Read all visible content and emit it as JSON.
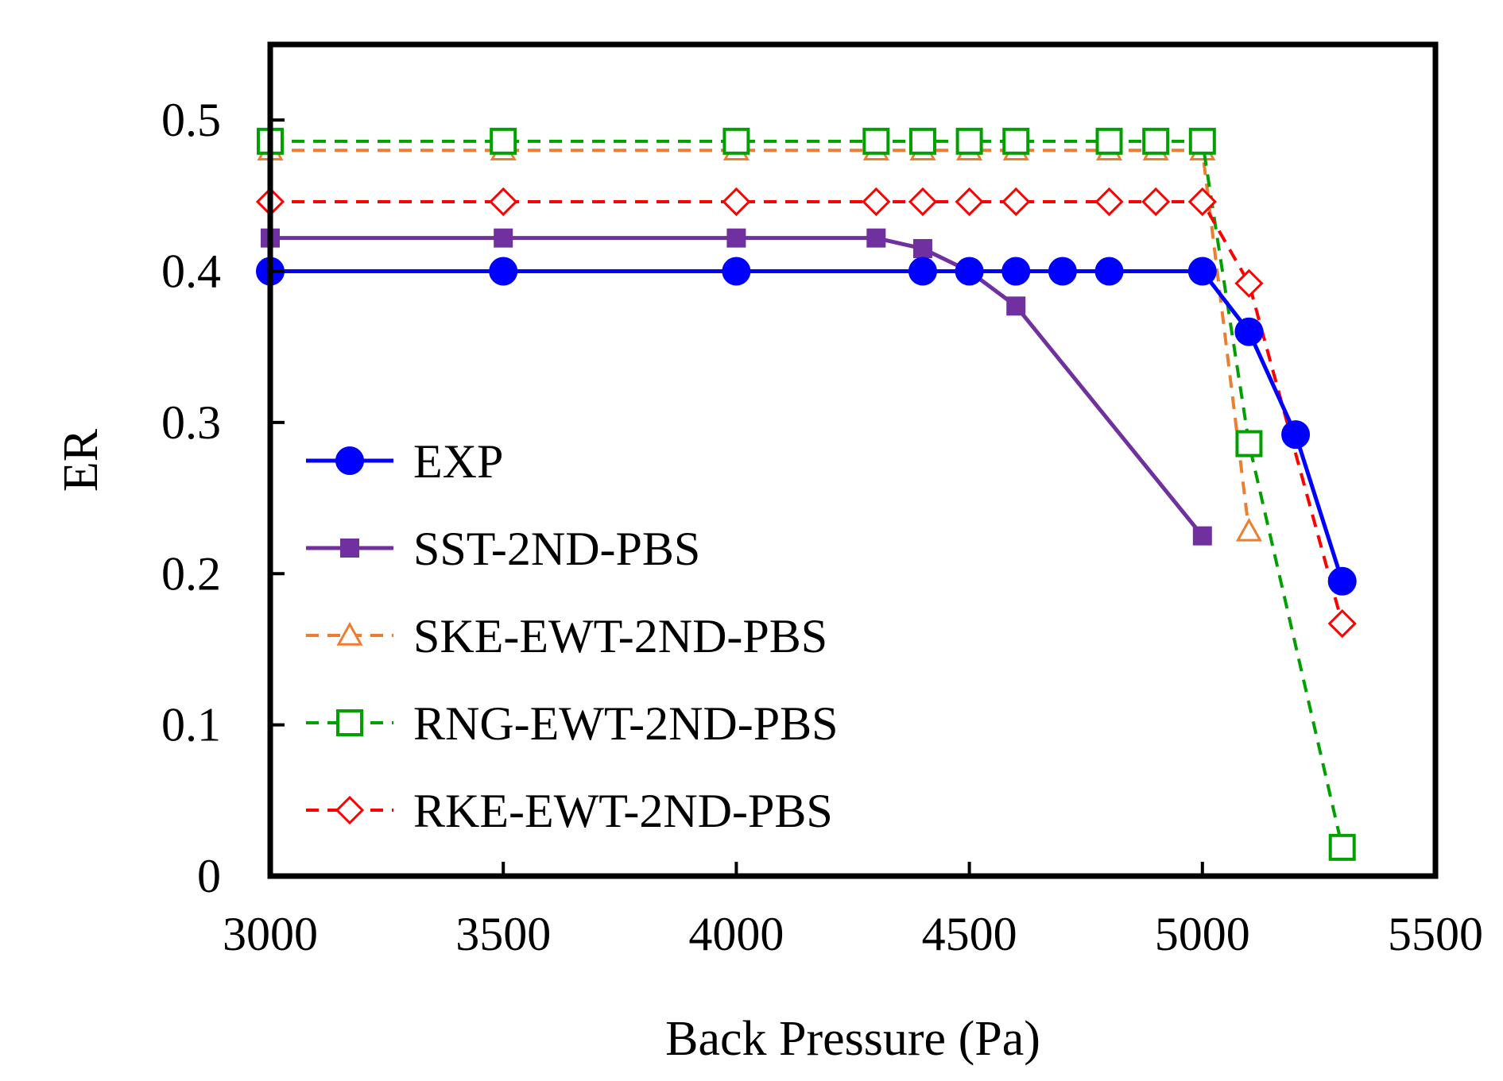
{
  "chart_data": {
    "type": "line",
    "title": "",
    "xlabel": "Back Pressure (Pa)",
    "ylabel": "ER",
    "xlim": [
      3000,
      5500
    ],
    "ylim": [
      0,
      0.55
    ],
    "xticks": [
      3000,
      3500,
      4000,
      4500,
      5000,
      5500
    ],
    "xtick_labels": [
      "3000",
      "3500",
      "4000",
      "4500",
      "5000",
      "5500"
    ],
    "yticks": [
      0,
      0.1,
      0.2,
      0.3,
      0.4,
      0.5
    ],
    "ytick_labels": [
      "0",
      "0.1",
      "0.2",
      "0.3",
      "0.4",
      "0.5"
    ],
    "grid": false,
    "legend_position": "left-center",
    "series": [
      {
        "name": "EXP",
        "color": "#0000ff",
        "line": "solid",
        "marker": "filled-circle",
        "x": [
          3000,
          3500,
          4000,
          4400,
          4500,
          4600,
          4700,
          4800,
          5000,
          5100,
          5200,
          5300
        ],
        "y": [
          0.4,
          0.4,
          0.4,
          0.4,
          0.4,
          0.4,
          0.4,
          0.4,
          0.4,
          0.36,
          0.292,
          0.195
        ]
      },
      {
        "name": "SST-2ND-PBS",
        "color": "#7030a0",
        "line": "solid",
        "marker": "filled-square",
        "x": [
          3000,
          3500,
          4000,
          4300,
          4400,
          4500,
          4600,
          5000
        ],
        "y": [
          0.422,
          0.422,
          0.422,
          0.422,
          0.415,
          0.4,
          0.377,
          0.225
        ]
      },
      {
        "name": "SKE-EWT-2ND-PBS",
        "color": "#ed7d31",
        "line": "dashed",
        "marker": "open-triangle",
        "x": [
          3000,
          3500,
          4000,
          4300,
          4400,
          4500,
          4600,
          4800,
          4900,
          5000,
          5100
        ],
        "y": [
          0.48,
          0.48,
          0.48,
          0.48,
          0.48,
          0.48,
          0.48,
          0.48,
          0.48,
          0.48,
          0.228
        ]
      },
      {
        "name": "RNG-EWT-2ND-PBS",
        "color": "#00a000",
        "line": "dashed",
        "marker": "open-square",
        "x": [
          3000,
          3500,
          4000,
          4300,
          4400,
          4500,
          4600,
          4800,
          4900,
          5000,
          5100,
          5300
        ],
        "y": [
          0.486,
          0.486,
          0.486,
          0.486,
          0.486,
          0.486,
          0.486,
          0.486,
          0.486,
          0.486,
          0.286,
          0.019
        ]
      },
      {
        "name": "RKE-EWT-2ND-PBS",
        "color": "#ff0000",
        "line": "dashed",
        "marker": "open-diamond",
        "x": [
          3000,
          3500,
          4000,
          4300,
          4400,
          4500,
          4600,
          4800,
          4900,
          5000,
          5100,
          5300
        ],
        "y": [
          0.446,
          0.446,
          0.446,
          0.446,
          0.446,
          0.446,
          0.446,
          0.446,
          0.446,
          0.446,
          0.392,
          0.167
        ]
      }
    ]
  }
}
